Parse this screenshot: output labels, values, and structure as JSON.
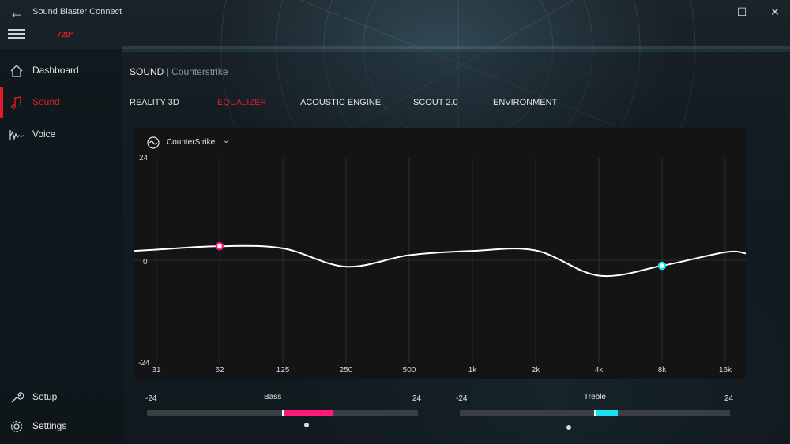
{
  "app": {
    "title": "Sound Blaster Connect",
    "device_badge": "720°"
  },
  "window_controls": {
    "minimize": "—",
    "maximize": "☐",
    "close": "✕"
  },
  "sidebar": {
    "items": [
      {
        "label": "Dashboard",
        "icon": "home-icon",
        "active": false
      },
      {
        "label": "Sound",
        "icon": "music-note-icon",
        "active": true
      },
      {
        "label": "Voice",
        "icon": "voice-wave-icon",
        "active": false
      }
    ],
    "bottom_items": [
      {
        "label": "Setup",
        "icon": "wrench-icon"
      },
      {
        "label": "Settings",
        "icon": "gear-icon"
      }
    ]
  },
  "breadcrumb": {
    "section": "SOUND",
    "separator": "|",
    "profile": "Counterstrike"
  },
  "tabs": [
    {
      "label": "REALITY 3D",
      "active": false
    },
    {
      "label": "EQUALIZER",
      "active": true
    },
    {
      "label": "ACOUSTIC ENGINE",
      "active": false
    },
    {
      "label": "SCOUT 2.0",
      "active": false
    },
    {
      "label": "ENVIRONMENT",
      "active": false
    }
  ],
  "equalizer": {
    "preset": "CounterStrike",
    "y_ticks": [
      "24",
      "0",
      "-24"
    ],
    "ylim": [
      -24,
      24
    ],
    "x_ticks": [
      "31",
      "62",
      "125",
      "250",
      "500",
      "1k",
      "2k",
      "4k",
      "8k",
      "16k"
    ],
    "curve_db": [
      2.5,
      3.3,
      2.8,
      -1.5,
      1.2,
      2.2,
      2.3,
      -3.6,
      -1.3,
      1.9
    ],
    "bass_handle_band": "62",
    "treble_handle_band": "8k"
  },
  "bass_slider": {
    "label": "Bass",
    "min": "-24",
    "max": "24",
    "value": 9
  },
  "treble_slider": {
    "label": "Treble",
    "min": "-24",
    "max": "24",
    "value": 4
  },
  "colors": {
    "accent": "#e21c2c",
    "bass": "#ff1a7a",
    "treble": "#19e0f2",
    "curve": "#ffffff"
  }
}
